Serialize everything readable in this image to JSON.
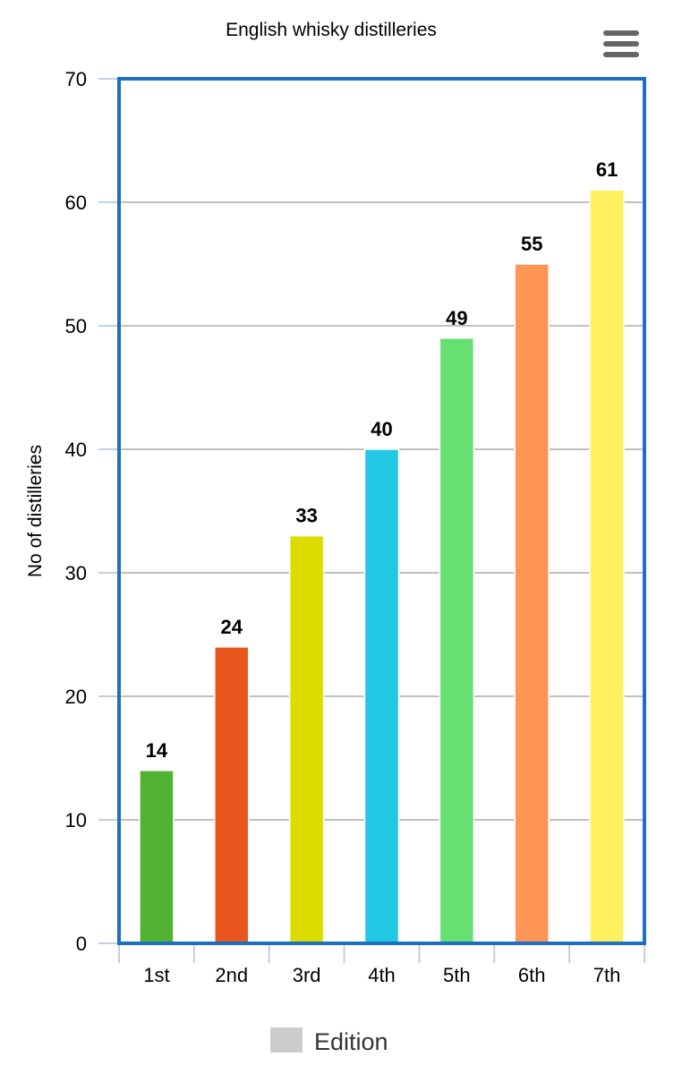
{
  "chart_data": {
    "type": "bar",
    "title": "English whisky distilleries",
    "xlabel": "",
    "ylabel": "No of distilleries",
    "categories": [
      "1st",
      "2nd",
      "3rd",
      "4th",
      "5th",
      "6th",
      "7th"
    ],
    "series": [
      {
        "name": "Edition",
        "values": [
          14,
          24,
          33,
          40,
          49,
          55,
          61
        ],
        "colors": [
          "#52b232",
          "#e8561e",
          "#dcdc00",
          "#22c8e3",
          "#66e070",
          "#fd9556",
          "#fdef5e"
        ]
      }
    ],
    "ylim": [
      0,
      70
    ],
    "yticks": [
      0,
      10,
      20,
      30,
      40,
      50,
      60,
      70
    ],
    "grid": true,
    "data_labels": true,
    "legend": {
      "position": "bottom-center",
      "entries": [
        "Edition"
      ],
      "swatch_color": "#cccccc"
    }
  },
  "menu": {
    "icon": "hamburger-menu-icon"
  },
  "colors": {
    "plot_border": "#1c70c0",
    "grid": "#c0c0c0",
    "axis": "#c0d0e0",
    "text": "#000000"
  }
}
